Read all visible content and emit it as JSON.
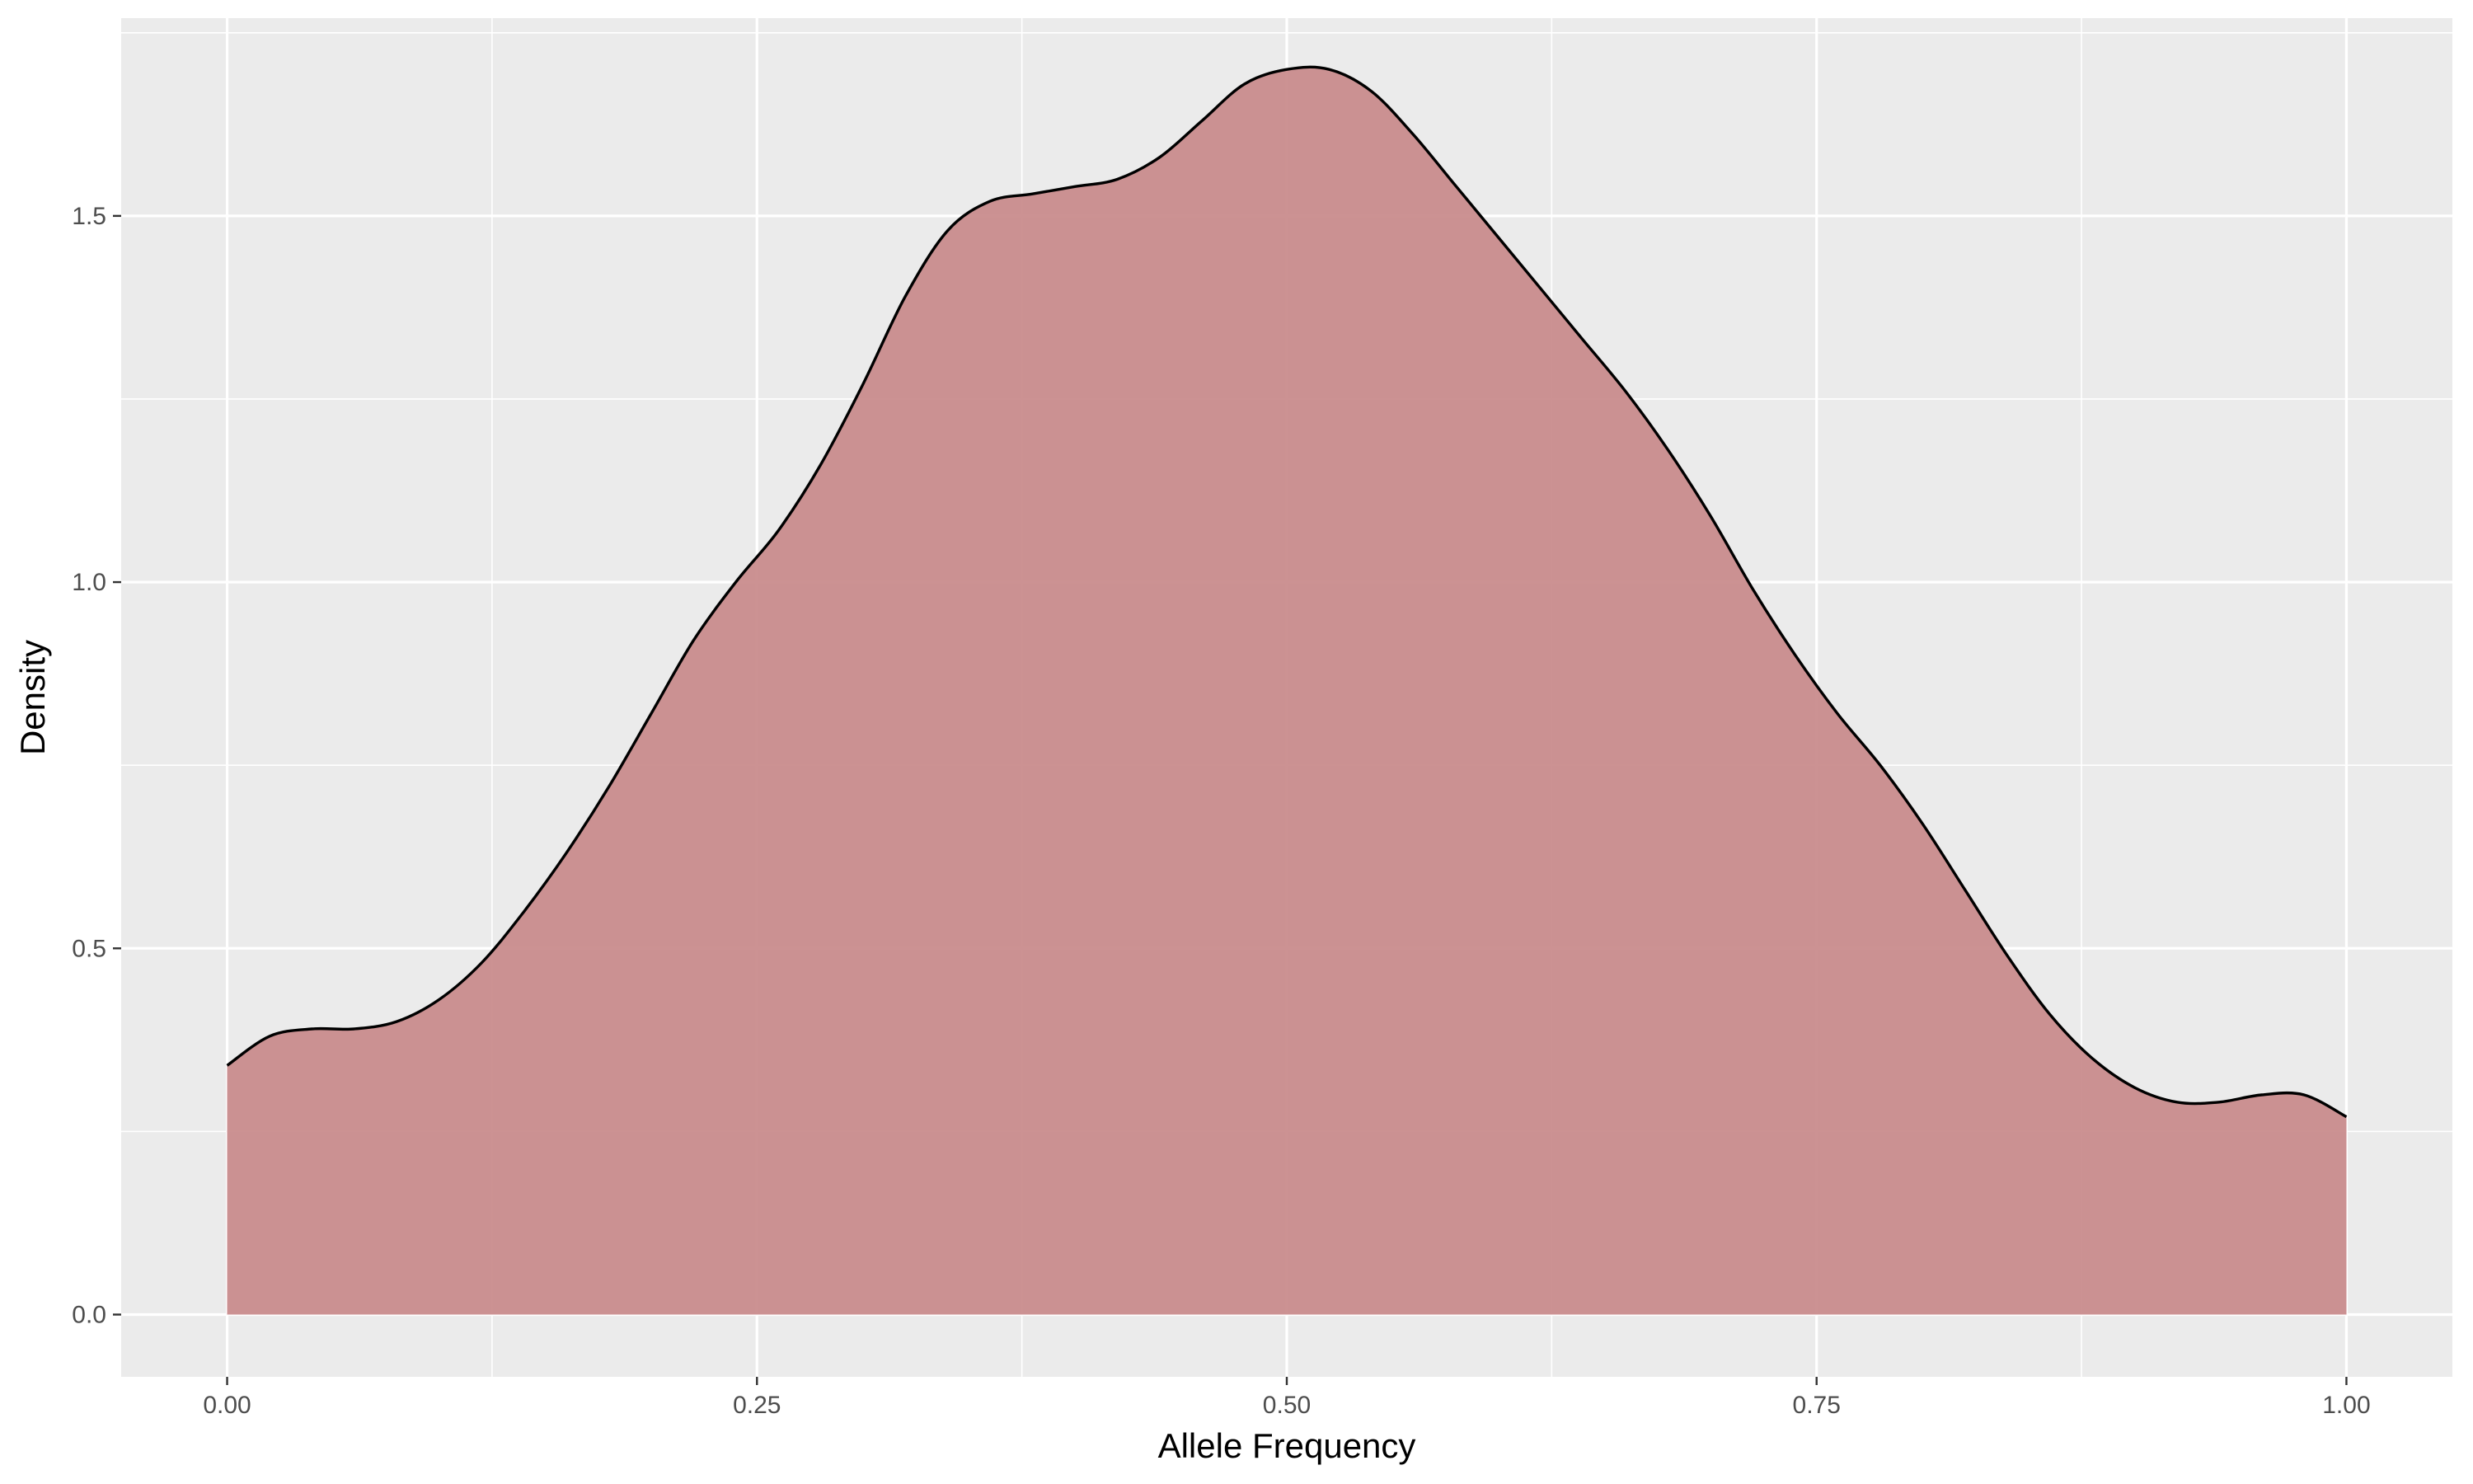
{
  "chart_data": {
    "type": "area",
    "title": "",
    "xlabel": "Allele Frequency",
    "ylabel": "Density",
    "xlim": [
      -0.05,
      1.05
    ],
    "ylim": [
      -0.085,
      1.77
    ],
    "x_ticks": [
      0.0,
      0.25,
      0.5,
      0.75,
      1.0
    ],
    "x_tick_labels": [
      "0.00",
      "0.25",
      "0.50",
      "0.75",
      "1.00"
    ],
    "y_ticks": [
      0.0,
      0.5,
      1.0,
      1.5
    ],
    "y_tick_labels": [
      "0.0",
      "0.5",
      "1.0",
      "1.5"
    ],
    "grid": true,
    "legend": "none",
    "colors": {
      "panel": "#ebebeb",
      "grid": "#ffffff",
      "fill": "#c8898a",
      "line": "#000000"
    },
    "series": [
      {
        "x": [
          0.0,
          0.02,
          0.04,
          0.06,
          0.08,
          0.1,
          0.12,
          0.14,
          0.16,
          0.18,
          0.2,
          0.22,
          0.24,
          0.26,
          0.28,
          0.3,
          0.32,
          0.34,
          0.36,
          0.38,
          0.4,
          0.42,
          0.44,
          0.46,
          0.48,
          0.5,
          0.52,
          0.54,
          0.56,
          0.58,
          0.6,
          0.62,
          0.64,
          0.66,
          0.68,
          0.7,
          0.72,
          0.74,
          0.76,
          0.78,
          0.8,
          0.82,
          0.84,
          0.86,
          0.88,
          0.9,
          0.92,
          0.94,
          0.96,
          0.98,
          1.0
        ],
        "y": [
          0.34,
          0.38,
          0.39,
          0.39,
          0.4,
          0.43,
          0.48,
          0.55,
          0.63,
          0.72,
          0.82,
          0.92,
          1.0,
          1.07,
          1.16,
          1.27,
          1.39,
          1.48,
          1.52,
          1.53,
          1.54,
          1.55,
          1.58,
          1.63,
          1.68,
          1.7,
          1.7,
          1.67,
          1.61,
          1.54,
          1.47,
          1.4,
          1.33,
          1.26,
          1.18,
          1.09,
          0.99,
          0.9,
          0.82,
          0.75,
          0.67,
          0.58,
          0.49,
          0.41,
          0.35,
          0.31,
          0.29,
          0.29,
          0.3,
          0.3,
          0.27
        ]
      }
    ]
  }
}
